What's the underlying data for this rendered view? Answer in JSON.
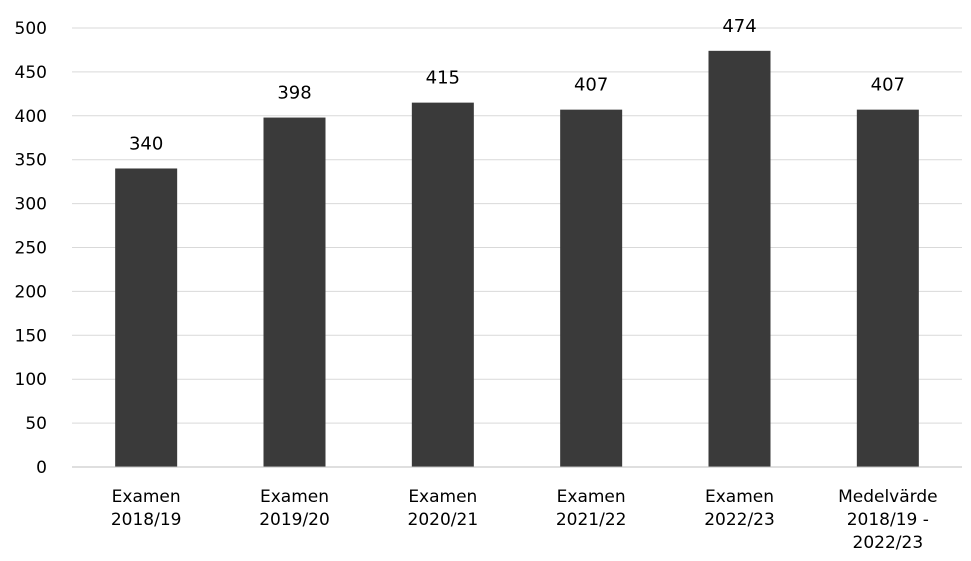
{
  "chart_data": {
    "type": "bar",
    "categories": [
      [
        "Examen",
        "2018/19"
      ],
      [
        "Examen",
        "2019/20"
      ],
      [
        "Examen",
        "2020/21"
      ],
      [
        "Examen",
        "2021/22"
      ],
      [
        "Examen",
        "2022/23"
      ],
      [
        "Medelvärde",
        "2018/19 -",
        "2022/23"
      ]
    ],
    "values": [
      340,
      398,
      415,
      407,
      474,
      407
    ],
    "data_labels": [
      "340",
      "398",
      "415",
      "407",
      "474",
      "407"
    ],
    "yticks": [
      "0",
      "50",
      "100",
      "150",
      "200",
      "250",
      "300",
      "350",
      "400",
      "450",
      "500"
    ],
    "ylim": [
      0,
      500
    ],
    "ytick_step": 50,
    "grid": true,
    "legend": "none",
    "title": "",
    "xlabel": "",
    "ylabel": "",
    "colors": {
      "bar": "#3a3a3a",
      "grid": "#d9d9d9",
      "axis": "#bfbfbf",
      "text": "#000000"
    }
  }
}
